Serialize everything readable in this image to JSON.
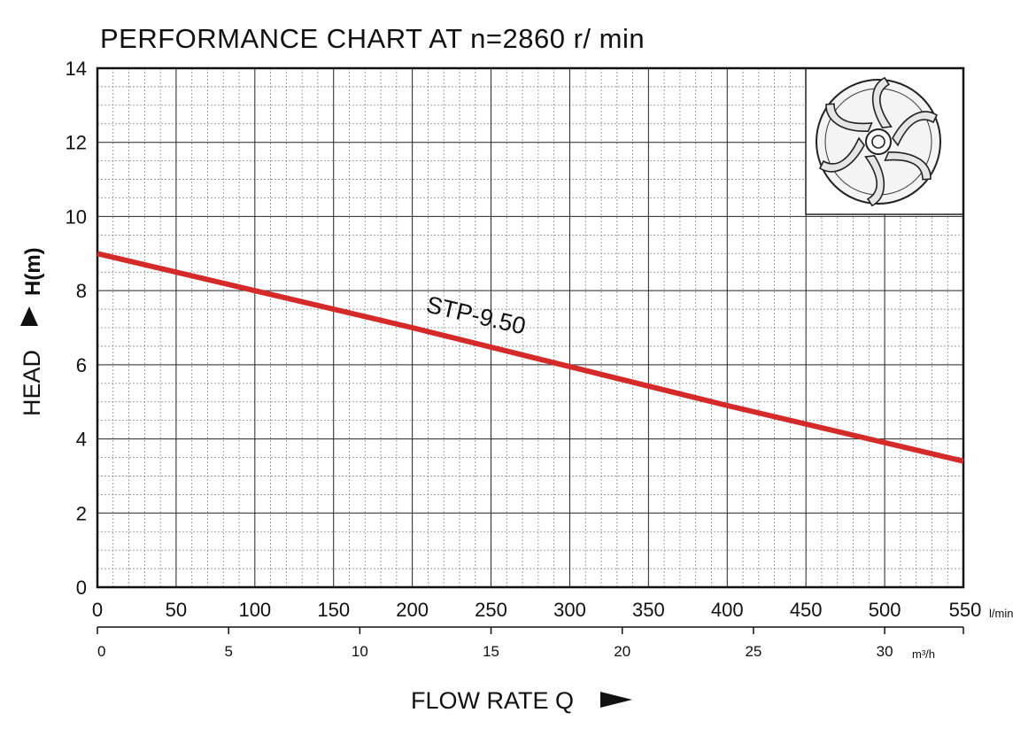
{
  "chart_data": {
    "type": "line",
    "title": "PERFORMANCE CHART AT n=2860 r/ min",
    "xlabel": "FLOW RATE Q",
    "ylabel_text": "HEAD",
    "ylabel_unit": "H(m)",
    "x_unit": "l/min",
    "x2_unit": "m³/h",
    "xlim": [
      0,
      550
    ],
    "ylim": [
      0,
      14
    ],
    "x_ticks": [
      0,
      50,
      100,
      150,
      200,
      250,
      300,
      350,
      400,
      450,
      500,
      550
    ],
    "y_ticks": [
      0,
      2,
      4,
      6,
      8,
      10,
      12,
      14
    ],
    "x2_ticks": [
      0,
      5,
      10,
      15,
      20,
      25,
      30
    ],
    "x2_lim": [
      0,
      33
    ],
    "grid": true,
    "series": [
      {
        "name": "STP-9.50",
        "color": "#d42a2a",
        "x": [
          0,
          100,
          200,
          300,
          400,
          500,
          550
        ],
        "y": [
          9.0,
          8.0,
          7.0,
          5.95,
          4.9,
          3.9,
          3.4
        ]
      }
    ],
    "inset_image": "impeller-icon"
  }
}
